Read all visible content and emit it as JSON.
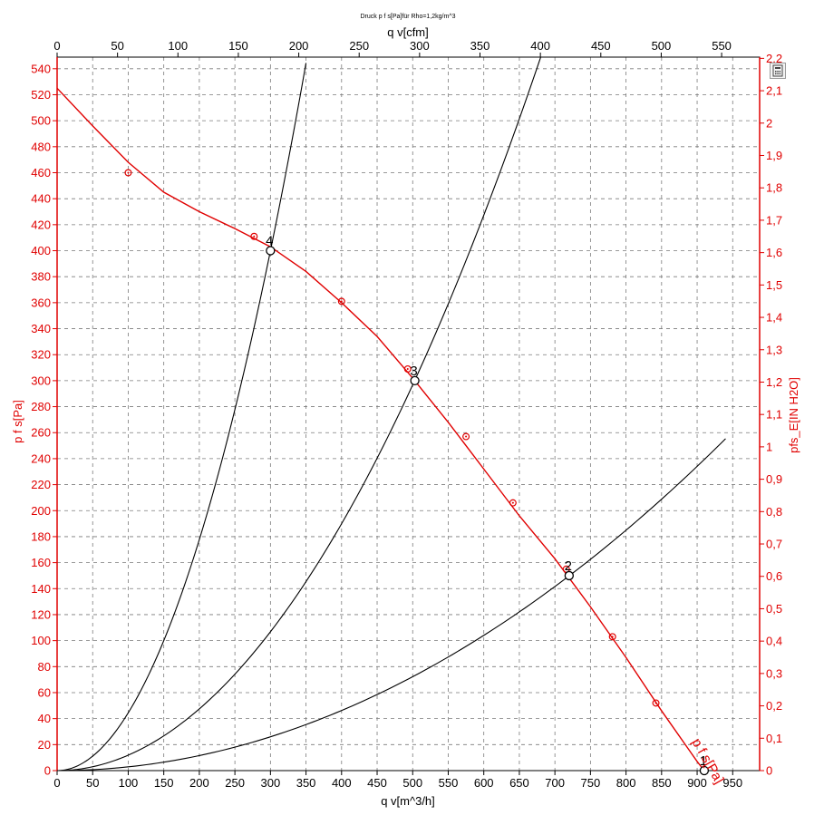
{
  "chart_data": {
    "type": "line",
    "title": "Druck p f s[Pa]für Rho=1,2kg/m^3",
    "xlabel": "q v[m^3/h]",
    "x2label": "q v[cfm]",
    "ylabel": "p f s[Pa]",
    "y2label": "pfs_E[IN H2O]",
    "xlim": [
      0,
      990
    ],
    "ylim": [
      0,
      550
    ],
    "x_ticks": [
      0,
      50,
      100,
      150,
      200,
      250,
      300,
      350,
      400,
      450,
      500,
      550,
      600,
      650,
      700,
      750,
      800,
      850,
      900,
      950
    ],
    "x2_ticks": [
      0,
      50,
      100,
      150,
      200,
      250,
      300,
      350,
      400,
      450,
      500,
      550
    ],
    "x2_tick_labels": [
      "0",
      "50",
      "100",
      "150",
      "200",
      "250",
      "300",
      "350",
      "400",
      "450",
      "500",
      "550"
    ],
    "y_ticks": [
      0,
      20,
      40,
      60,
      80,
      100,
      120,
      140,
      160,
      180,
      200,
      220,
      240,
      260,
      280,
      300,
      320,
      340,
      360,
      380,
      400,
      420,
      440,
      460,
      480,
      500,
      520,
      540
    ],
    "y2_ticks": [
      0,
      0.1,
      0.2,
      0.3,
      0.4,
      0.5,
      0.6,
      0.7,
      0.8,
      0.9,
      1,
      1.1,
      1.2,
      1.3,
      1.4,
      1.5,
      1.6,
      1.7,
      1.8,
      1.9,
      2,
      2.1,
      2.2
    ],
    "y2_tick_labels": [
      "0",
      "0,1",
      "0,2",
      "0,3",
      "0,4",
      "0,5",
      "0,6",
      "0,7",
      "0,8",
      "0,9",
      "1",
      "1,1",
      "1,2",
      "1,3",
      "1,4",
      "1,5",
      "1,6",
      "1,7",
      "1,8",
      "1,9",
      "2",
      "2,1",
      "2,2"
    ],
    "grid": true,
    "series": [
      {
        "name": "p f s[Pa]",
        "color": "#e00000",
        "x": [
          0,
          50,
          100,
          150,
          200,
          250,
          300,
          350,
          400,
          450,
          500,
          550,
          600,
          650,
          700,
          750,
          800,
          850,
          900,
          910
        ],
        "y": [
          525,
          496,
          468,
          445,
          430,
          417,
          403,
          384,
          360,
          334,
          302,
          268,
          232,
          196,
          163,
          126,
          87,
          46,
          7,
          0
        ]
      }
    ],
    "markers": [
      {
        "x": 100,
        "y": 460
      },
      {
        "x": 277,
        "y": 411
      },
      {
        "x": 400,
        "y": 361
      },
      {
        "x": 493,
        "y": 309
      },
      {
        "x": 575,
        "y": 257
      },
      {
        "x": 641,
        "y": 206
      },
      {
        "x": 716,
        "y": 155
      },
      {
        "x": 781,
        "y": 103
      },
      {
        "x": 842,
        "y": 52
      }
    ],
    "system_curves": [
      {
        "k": 0.004444,
        "x_max": 350
      },
      {
        "k": 0.001187,
        "x_max": 680
      },
      {
        "k": 0.000289,
        "x_max": 940
      }
    ],
    "operating_points": [
      {
        "label": "4",
        "x": 300,
        "y": 400
      },
      {
        "label": "3",
        "x": 503,
        "y": 300
      },
      {
        "label": "2",
        "x": 720,
        "y": 150
      },
      {
        "label": "1",
        "x": 910,
        "y": 0
      }
    ],
    "curve_label": "p f s[Pa]"
  },
  "toolbar": {
    "icon": "calculator-icon"
  }
}
